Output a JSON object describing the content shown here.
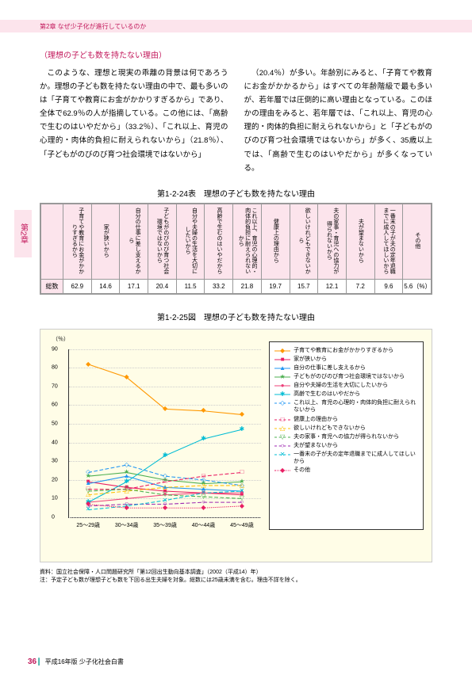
{
  "header": {
    "chapter_label": "第2章 なぜ少子化が進行しているのか"
  },
  "chapter_tab": "第2章",
  "subtitle": "（理想の子ども数を持たない理由）",
  "body": {
    "left": "このような、理想と現実の乖離の背景は何であろうか。理想の子ども数を持たない理由の中で、最も多いのは「子育てや教育にお金がかかりすぎるから」であり、全体で62.9％の人が指摘している。この他には、「高齢で生むのはいやだから」（33.2％）、「これ以上、育児の心理的・肉体的負担に耐えられないから」（21.8％）、「子どもがのびのび育つ社会環境ではないから」",
    "right": "（20.4％）が多い。年齢別にみると、「子育てや教育にお金がかかるから」はすべての年齢階級で最も多いが、若年層では圧倒的に高い理由となっている。このほかの理由をみると、若年層では、「これ以上、育児の心理的・肉体的負担に耐えられないから」と「子どもがのびのび育つ社会環境ではないから」が多く、35歳以上では、「高齢で生むのはいやだから」が多くなっている。"
  },
  "table": {
    "title": "第1-2-24表　理想の子ども数を持たない理由",
    "headers": [
      "子育てや教育にお金がかかりすぎるから",
      "家が狭いから",
      "自分の仕事に差し支えるから",
      "子どもがのびのび育つ社会環境ではないから",
      "自分や夫婦の生活を大切にしたいから",
      "高齢で生むのはいやだから",
      "これ以上︑育児の心理的・肉体的負担に耐えられないから",
      "健康上の理由から",
      "欲しいけれどもできないから",
      "夫の家事・育児への協力が得られないから",
      "夫が望まないから",
      "一番末の子が夫の定年退職までに成人してほしいから",
      "その他"
    ],
    "row_label": "総数",
    "values": [
      "62.9",
      "14.6",
      "17.1",
      "20.4",
      "11.5",
      "33.2",
      "21.8",
      "19.7",
      "15.7",
      "12.1",
      "7.2",
      "9.6",
      "5.6"
    ],
    "unit": "（%）"
  },
  "chart": {
    "title": "第1-2-25図　理想の子ども数を持たない理由",
    "y_unit": "（％）",
    "y_max": 90,
    "y_min": 0,
    "y_step": 10,
    "x_labels": [
      "25～29歳",
      "30～34歳",
      "35～39歳",
      "40～44歳",
      "45～49歳"
    ],
    "series": [
      {
        "label": "子育てや教育にお金がかかりすぎるから",
        "color": "#ff9800",
        "marker": "◆",
        "dash": "solid",
        "values": [
          82,
          75,
          58,
          57,
          55
        ]
      },
      {
        "label": "家が狭いから",
        "color": "#e91e63",
        "marker": "■",
        "dash": "solid",
        "values": [
          19,
          16,
          14,
          13,
          12
        ]
      },
      {
        "label": "自分の仕事に差し支えるから",
        "color": "#2196f3",
        "marker": "▲",
        "dash": "solid",
        "values": [
          18,
          22,
          16,
          15,
          14
        ]
      },
      {
        "label": "子どもがのびのび育つ社会環境ではないから",
        "color": "#4caf50",
        "marker": "★",
        "dash": "solid",
        "values": [
          22,
          24,
          20,
          18,
          19
        ]
      },
      {
        "label": "自分や夫婦の生活を大切にしたいから",
        "color": "#ec407a",
        "marker": "●",
        "dash": "solid",
        "values": [
          8,
          10,
          12,
          13,
          13
        ]
      },
      {
        "label": "高齢で生むのはいやだから",
        "color": "#00bcd4",
        "marker": "✱",
        "dash": "solid",
        "values": [
          8,
          19,
          33,
          42,
          47
        ]
      },
      {
        "label": "これ以上、育児の心理的・肉体的負担に耐えられないから",
        "color": "#2196f3",
        "marker": "◇",
        "dash": "dashed",
        "values": [
          24,
          28,
          22,
          20,
          17
        ]
      },
      {
        "label": "健康上の理由から",
        "color": "#e91e63",
        "marker": "□",
        "dash": "dashed",
        "values": [
          15,
          15,
          19,
          22,
          24
        ]
      },
      {
        "label": "欲しいけれどもできないから",
        "color": "#ffc107",
        "marker": "△",
        "dash": "dashed",
        "values": [
          12,
          14,
          16,
          17,
          17
        ]
      },
      {
        "label": "夫の家事・育児への協力が得られないから",
        "color": "#4caf50",
        "marker": "▽",
        "dash": "dashed",
        "values": [
          14,
          15,
          12,
          11,
          10
        ]
      },
      {
        "label": "夫が望まないから",
        "color": "#9c27b0",
        "marker": "○",
        "dash": "dashed",
        "values": [
          6,
          7,
          7,
          8,
          8
        ]
      },
      {
        "label": "一番末の子が夫の定年退職までに成人してほしいから",
        "color": "#00bcd4",
        "marker": "✕",
        "dash": "dashed",
        "values": [
          4,
          6,
          9,
          13,
          14
        ]
      },
      {
        "label": "その他",
        "color": "#e91e63",
        "marker": "◆",
        "dash": "dotted",
        "values": [
          7,
          5,
          5,
          5,
          6
        ]
      }
    ],
    "footnote_label": "資料：",
    "footnote1": "国立社会保障・人口問題研究所「第12回出生動向基本調査」（2002（平成14）年）",
    "footnote_note": "注：",
    "footnote2": "予定子ども数が理想子ども数を下回る出生夫婦を対象。総数には25歳未満を含む。理由不詳を除く。"
  },
  "footer": {
    "page": "36",
    "title": "平成16年版 少子化社会白書"
  }
}
